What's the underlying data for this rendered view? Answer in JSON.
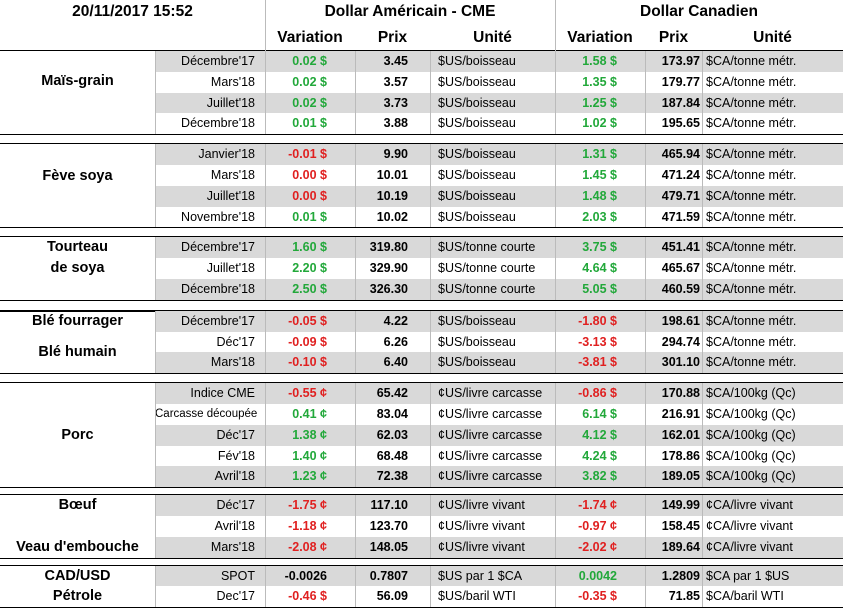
{
  "header": {
    "datetime": "20/11/2017 15:52",
    "us_title": "Dollar Américain - CME",
    "ca_title": "Dollar Canadien",
    "columns": [
      "Variation",
      "Prix",
      "Unité",
      "Variation",
      "Prix",
      "Unité"
    ]
  },
  "groups": [
    {
      "labels": [
        "Maïs-grain"
      ],
      "rows": [
        {
          "contract": "Décembre'17",
          "us": {
            "variation": "0.02 $",
            "color": "green",
            "prix": "3.45",
            "unite": "$US/boisseau"
          },
          "ca": {
            "variation": "1.58 $",
            "color": "green",
            "prix": "173.97",
            "unite": "$CA/tonne métr."
          }
        },
        {
          "contract": "Mars'18",
          "us": {
            "variation": "0.02 $",
            "color": "green",
            "prix": "3.57",
            "unite": "$US/boisseau"
          },
          "ca": {
            "variation": "1.35 $",
            "color": "green",
            "prix": "179.77",
            "unite": "$CA/tonne métr."
          }
        },
        {
          "contract": "Juillet'18",
          "us": {
            "variation": "0.02 $",
            "color": "green",
            "prix": "3.73",
            "unite": "$US/boisseau"
          },
          "ca": {
            "variation": "1.25 $",
            "color": "green",
            "prix": "187.84",
            "unite": "$CA/tonne métr."
          }
        },
        {
          "contract": "Décembre'18",
          "us": {
            "variation": "0.01 $",
            "color": "green",
            "prix": "3.88",
            "unite": "$US/boisseau"
          },
          "ca": {
            "variation": "1.02 $",
            "color": "green",
            "prix": "195.65",
            "unite": "$CA/tonne métr."
          }
        }
      ]
    },
    {
      "labels": [
        "Fève soya"
      ],
      "rows": [
        {
          "contract": "Janvier'18",
          "us": {
            "variation": "-0.01 $",
            "color": "red",
            "prix": "9.90",
            "unite": "$US/boisseau"
          },
          "ca": {
            "variation": "1.31 $",
            "color": "green",
            "prix": "465.94",
            "unite": "$CA/tonne métr."
          }
        },
        {
          "contract": "Mars'18",
          "us": {
            "variation": "0.00 $",
            "color": "red",
            "prix": "10.01",
            "unite": "$US/boisseau"
          },
          "ca": {
            "variation": "1.45 $",
            "color": "green",
            "prix": "471.24",
            "unite": "$CA/tonne métr."
          }
        },
        {
          "contract": "Juillet'18",
          "us": {
            "variation": "0.00 $",
            "color": "red",
            "prix": "10.19",
            "unite": "$US/boisseau"
          },
          "ca": {
            "variation": "1.48 $",
            "color": "green",
            "prix": "479.71",
            "unite": "$CA/tonne métr."
          }
        },
        {
          "contract": "Novembre'18",
          "us": {
            "variation": "0.01 $",
            "color": "green",
            "prix": "10.02",
            "unite": "$US/boisseau"
          },
          "ca": {
            "variation": "2.03 $",
            "color": "green",
            "prix": "471.59",
            "unite": "$CA/tonne métr."
          }
        }
      ]
    },
    {
      "labels": [
        "Tourteau",
        "de soya"
      ],
      "rows": [
        {
          "contract": "Décembre'17",
          "us": {
            "variation": "1.60 $",
            "color": "green",
            "prix": "319.80",
            "unite": "$US/tonne courte"
          },
          "ca": {
            "variation": "3.75 $",
            "color": "green",
            "prix": "451.41",
            "unite": "$CA/tonne métr."
          }
        },
        {
          "contract": "Juillet'18",
          "us": {
            "variation": "2.20 $",
            "color": "green",
            "prix": "329.90",
            "unite": "$US/tonne courte"
          },
          "ca": {
            "variation": "4.64 $",
            "color": "green",
            "prix": "465.67",
            "unite": "$CA/tonne métr."
          }
        },
        {
          "contract": "Décembre'18",
          "us": {
            "variation": "2.50 $",
            "color": "green",
            "prix": "326.30",
            "unite": "$US/tonne courte"
          },
          "ca": {
            "variation": "5.05 $",
            "color": "green",
            "prix": "460.59",
            "unite": "$CA/tonne métr."
          }
        }
      ]
    },
    {
      "labels": [
        "Blé fourrager",
        "Blé humain"
      ],
      "rows": [
        {
          "contract": "Décembre'17",
          "us": {
            "variation": "-0.05 $",
            "color": "red",
            "prix": "4.22",
            "unite": "$US/boisseau"
          },
          "ca": {
            "variation": "-1.80 $",
            "color": "red",
            "prix": "198.61",
            "unite": "$CA/tonne métr."
          }
        },
        {
          "contract": "Déc'17",
          "us": {
            "variation": "-0.09 $",
            "color": "red",
            "prix": "6.26",
            "unite": "$US/boisseau"
          },
          "ca": {
            "variation": "-3.13 $",
            "color": "red",
            "prix": "294.74",
            "unite": "$CA/tonne métr."
          }
        },
        {
          "contract": "Mars'18",
          "us": {
            "variation": "-0.10 $",
            "color": "red",
            "prix": "6.40",
            "unite": "$US/boisseau"
          },
          "ca": {
            "variation": "-3.81 $",
            "color": "red",
            "prix": "301.10",
            "unite": "$CA/tonne métr."
          }
        }
      ]
    },
    {
      "labels": [
        "Porc"
      ],
      "rows": [
        {
          "contract": "Indice CME",
          "us": {
            "variation": "-0.55 ¢",
            "color": "red",
            "prix": "65.42",
            "unite": "¢US/livre carcasse"
          },
          "ca": {
            "variation": "-0.86 $",
            "color": "red",
            "prix": "170.88",
            "unite": "$CA/100kg (Qc)"
          }
        },
        {
          "contract": "Carcasse découpée",
          "us": {
            "variation": "0.41 ¢",
            "color": "green",
            "prix": "83.04",
            "unite": "¢US/livre carcasse"
          },
          "ca": {
            "variation": "6.14 $",
            "color": "green",
            "prix": "216.91",
            "unite": "$CA/100kg (Qc)"
          }
        },
        {
          "contract": "Déc'17",
          "us": {
            "variation": "1.38 ¢",
            "color": "green",
            "prix": "62.03",
            "unite": "¢US/livre carcasse"
          },
          "ca": {
            "variation": "4.12 $",
            "color": "green",
            "prix": "162.01",
            "unite": "$CA/100kg (Qc)"
          }
        },
        {
          "contract": "Fév'18",
          "us": {
            "variation": "1.40 ¢",
            "color": "green",
            "prix": "68.48",
            "unite": "¢US/livre carcasse"
          },
          "ca": {
            "variation": "4.24 $",
            "color": "green",
            "prix": "178.86",
            "unite": "$CA/100kg (Qc)"
          }
        },
        {
          "contract": "Avril'18",
          "us": {
            "variation": "1.23 ¢",
            "color": "green",
            "prix": "72.38",
            "unite": "¢US/livre carcasse"
          },
          "ca": {
            "variation": "3.82 $",
            "color": "green",
            "prix": "189.05",
            "unite": "$CA/100kg (Qc)"
          }
        }
      ]
    },
    {
      "labels": [
        "Bœuf",
        "Veau d'embouche"
      ],
      "rows": [
        {
          "contract": "Déc'17",
          "us": {
            "variation": "-1.75 ¢",
            "color": "red",
            "prix": "117.10",
            "unite": "¢US/livre vivant"
          },
          "ca": {
            "variation": "-1.74 ¢",
            "color": "red",
            "prix": "149.99",
            "unite": "¢CA/livre vivant"
          }
        },
        {
          "contract": "Avril'18",
          "us": {
            "variation": "-1.18 ¢",
            "color": "red",
            "prix": "123.70",
            "unite": "¢US/livre vivant"
          },
          "ca": {
            "variation": "-0.97 ¢",
            "color": "red",
            "prix": "158.45",
            "unite": "¢CA/livre vivant"
          }
        },
        {
          "contract": "Mars'18",
          "us": {
            "variation": "-2.08 ¢",
            "color": "red",
            "prix": "148.05",
            "unite": "¢US/livre vivant"
          },
          "ca": {
            "variation": "-2.02 ¢",
            "color": "red",
            "prix": "189.64",
            "unite": "¢CA/livre vivant"
          }
        }
      ]
    },
    {
      "labels": [
        "CAD/USD",
        "Pétrole"
      ],
      "rows": [
        {
          "contract": "SPOT",
          "us": {
            "variation": "-0.0026",
            "color": "black",
            "prix": "0.7807",
            "unite": "$US par 1 $CA"
          },
          "ca": {
            "variation": "0.0042",
            "color": "green",
            "prix": "1.2809",
            "unite": "$CA par 1 $US"
          }
        },
        {
          "contract": "Dec'17",
          "us": {
            "variation": "-0.46 $",
            "color": "red",
            "prix": "56.09",
            "unite": "$US/baril WTI"
          },
          "ca": {
            "variation": "-0.35 $",
            "color": "red",
            "prix": "71.85",
            "unite": "$CA/baril WTI"
          }
        }
      ]
    }
  ]
}
